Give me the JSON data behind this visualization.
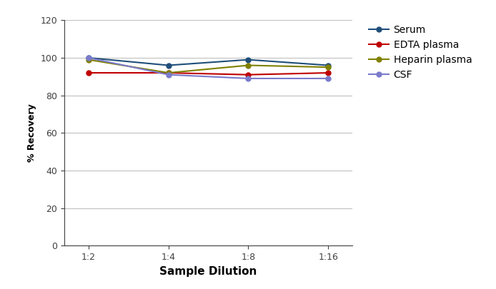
{
  "x_labels": [
    "1:2",
    "1:4",
    "1:8",
    "1:16"
  ],
  "x_positions": [
    0,
    1,
    2,
    3
  ],
  "series": [
    {
      "name": "Serum",
      "color": "#1f4e79",
      "values": [
        100,
        96,
        99,
        96
      ]
    },
    {
      "name": "EDTA plasma",
      "color": "#c00000",
      "values": [
        92,
        92,
        91,
        92
      ]
    },
    {
      "name": "Heparin plasma",
      "color": "#808000",
      "values": [
        99,
        92,
        96,
        95
      ]
    },
    {
      "name": "CSF",
      "color": "#7b7bcc",
      "values": [
        100,
        91,
        89,
        89
      ]
    }
  ],
  "ylabel": "% Recovery",
  "xlabel": "Sample Dilution",
  "ylim": [
    0,
    120
  ],
  "yticks": [
    0,
    20,
    40,
    60,
    80,
    100,
    120
  ],
  "grid_color": "#c0c0c0",
  "background_color": "#ffffff",
  "marker": "o",
  "marker_size": 5,
  "linewidth": 1.5,
  "tick_fontsize": 9,
  "label_fontsize": 11,
  "legend_fontsize": 10
}
